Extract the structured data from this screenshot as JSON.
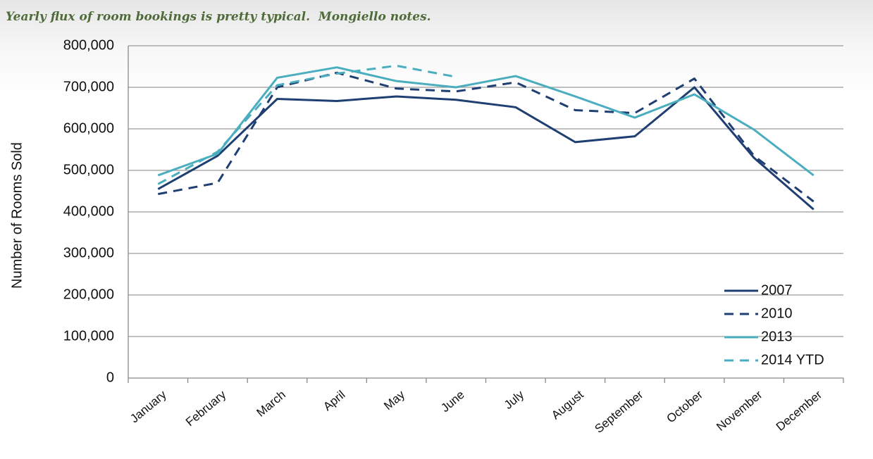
{
  "caption": "Yearly flux of room bookings is pretty typical.  Mongiello notes.",
  "chart_data": {
    "type": "line",
    "title": "",
    "xlabel": "",
    "ylabel": "Number of Rooms Sold",
    "categories": [
      "January",
      "February",
      "March",
      "April",
      "May",
      "June",
      "July",
      "August",
      "September",
      "October",
      "November",
      "December"
    ],
    "ylim": [
      0,
      800000
    ],
    "yticks": [
      "0",
      "100,000",
      "200,000",
      "300,000",
      "400,000",
      "500,000",
      "600,000",
      "700,000",
      "800,000"
    ],
    "grid": true,
    "legend_position": "bottom-right",
    "series": [
      {
        "name": "2007",
        "color": "#1f3f73",
        "dash": "solid",
        "values": [
          455000,
          535000,
          672000,
          667000,
          678000,
          670000,
          652000,
          568000,
          582000,
          700000,
          530000,
          406000
        ]
      },
      {
        "name": "2010",
        "color": "#1f3f73",
        "dash": "dashed",
        "values": [
          443000,
          470000,
          700000,
          735000,
          697000,
          690000,
          712000,
          645000,
          638000,
          721000,
          535000,
          425000
        ]
      },
      {
        "name": "2013",
        "color": "#4aaebf",
        "dash": "solid",
        "values": [
          488000,
          540000,
          723000,
          748000,
          715000,
          700000,
          727000,
          678000,
          627000,
          683000,
          598000,
          488000
        ]
      },
      {
        "name": "2014 YTD",
        "color": "#4aaebf",
        "dash": "dashed",
        "values": [
          467000,
          545000,
          705000,
          733000,
          752000,
          725000,
          null,
          null,
          null,
          null,
          null,
          null
        ]
      }
    ]
  }
}
